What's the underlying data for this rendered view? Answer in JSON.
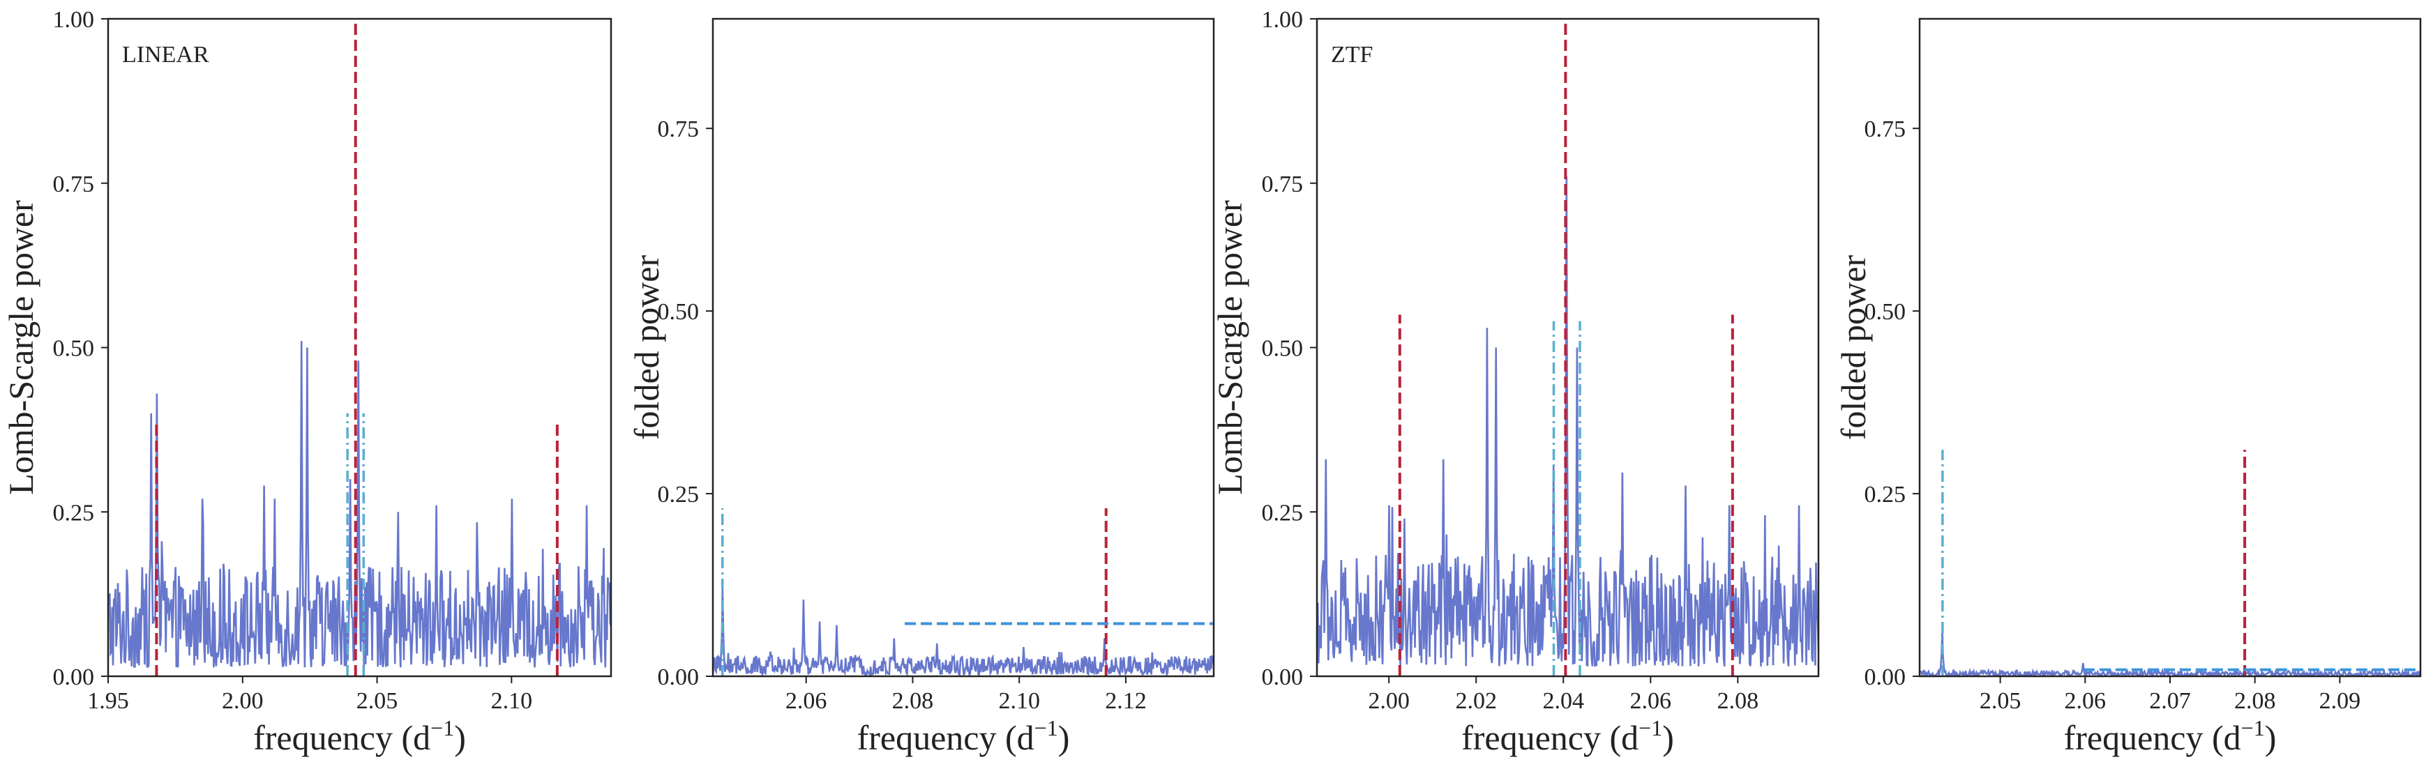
{
  "figure": {
    "colors": {
      "trace": "#6677cc",
      "red_marker": "#b8233b",
      "cyan_marker": "#5aaed0",
      "threshold": "#3f92dc",
      "frame": "#222222"
    }
  },
  "chart_data": [
    {
      "type": "line",
      "panel_label": "LINEAR",
      "xlabel": "frequency (d",
      "xlabel_exponent": "−1",
      "xlabel_tail": ")",
      "ylabel": "Lomb-Scargle power",
      "xlim": [
        1.95,
        2.137
      ],
      "ylim": [
        0.0,
        1.0
      ],
      "xticks": [
        1.95,
        2.0,
        2.05,
        2.1
      ],
      "xtick_labels": [
        "1.95",
        "2.00",
        "2.05",
        "2.10"
      ],
      "yticks": [
        0.0,
        0.25,
        0.5,
        0.75,
        1.0
      ],
      "ytick_labels": [
        "0.00",
        "0.25",
        "0.50",
        "0.75",
        "1.00"
      ],
      "series_baseline": 0.09,
      "series_peaks": [
        {
          "x": 1.968,
          "y": 0.43
        },
        {
          "x": 1.966,
          "y": 0.4
        },
        {
          "x": 1.985,
          "y": 0.27
        },
        {
          "x": 2.008,
          "y": 0.29
        },
        {
          "x": 2.012,
          "y": 0.27
        },
        {
          "x": 2.022,
          "y": 0.51
        },
        {
          "x": 2.024,
          "y": 0.5
        },
        {
          "x": 2.04,
          "y": 0.3
        },
        {
          "x": 2.043,
          "y": 0.48
        },
        {
          "x": 2.058,
          "y": 0.25
        },
        {
          "x": 2.072,
          "y": 0.26
        },
        {
          "x": 2.1,
          "y": 0.27
        },
        {
          "x": 2.128,
          "y": 0.26
        }
      ],
      "red_markers": [
        {
          "x": 1.968,
          "height": 0.39
        },
        {
          "x": 2.042,
          "height": 1.0
        },
        {
          "x": 2.117,
          "height": 0.39
        }
      ],
      "cyan_markers": [
        {
          "x": 2.039,
          "height": 0.4
        },
        {
          "x": 2.045,
          "height": 0.4
        }
      ]
    },
    {
      "type": "line",
      "panel_label": "",
      "xlabel": "frequency (d",
      "xlabel_exponent": "−1",
      "xlabel_tail": ")",
      "ylabel": "folded power",
      "xlim": [
        2.0425,
        2.1365
      ],
      "ylim": [
        0.0,
        0.9
      ],
      "xticks": [
        2.06,
        2.08,
        2.1,
        2.12
      ],
      "xtick_labels": [
        "2.06",
        "2.08",
        "2.10",
        "2.12"
      ],
      "yticks": [
        0.0,
        0.25,
        0.5,
        0.75
      ],
      "ytick_labels": [
        "0.00",
        "0.25",
        "0.50",
        "0.75"
      ],
      "series_baseline": 0.015,
      "series_peaks": [
        {
          "x": 2.0443,
          "y": 0.12
        },
        {
          "x": 2.0595,
          "y": 0.105
        },
        {
          "x": 2.0625,
          "y": 0.075
        },
        {
          "x": 2.0658,
          "y": 0.07
        },
        {
          "x": 2.0765,
          "y": 0.052
        },
        {
          "x": 2.0845,
          "y": 0.045
        },
        {
          "x": 2.1008,
          "y": 0.04
        },
        {
          "x": 2.116,
          "y": 0.052
        }
      ],
      "red_markers": [
        {
          "x": 2.1163,
          "height": 0.23
        }
      ],
      "cyan_markers": [
        {
          "x": 2.0443,
          "height": 0.23
        }
      ],
      "threshold": {
        "y": 0.072,
        "x_start": 2.0785,
        "x_end": 2.1365
      }
    },
    {
      "type": "line",
      "panel_label": "ZTF",
      "xlabel": "frequency (d",
      "xlabel_exponent": "−1",
      "xlabel_tail": ")",
      "ylabel": "Lomb-Scargle power",
      "xlim": [
        1.9835,
        2.0985
      ],
      "ylim": [
        0.0,
        1.0
      ],
      "xticks": [
        2.0,
        2.02,
        2.04,
        2.06,
        2.08
      ],
      "xtick_labels": [
        "2.00",
        "2.02",
        "2.04",
        "2.06",
        "2.08"
      ],
      "yticks": [
        0.0,
        0.25,
        0.5,
        0.75,
        1.0
      ],
      "ytick_labels": [
        "0.00",
        "0.25",
        "0.50",
        "0.75",
        "1.00"
      ],
      "series_baseline": 0.1,
      "series_peaks": [
        {
          "x": 1.9855,
          "y": 0.33
        },
        {
          "x": 2.0,
          "y": 0.26
        },
        {
          "x": 2.0035,
          "y": 0.24
        },
        {
          "x": 2.0125,
          "y": 0.33
        },
        {
          "x": 2.0225,
          "y": 0.53
        },
        {
          "x": 2.0245,
          "y": 0.5
        },
        {
          "x": 2.0378,
          "y": 0.32
        },
        {
          "x": 2.0408,
          "y": 0.76
        },
        {
          "x": 2.0432,
          "y": 0.5
        },
        {
          "x": 2.0535,
          "y": 0.31
        },
        {
          "x": 2.068,
          "y": 0.29
        },
        {
          "x": 2.078,
          "y": 0.26
        },
        {
          "x": 2.094,
          "y": 0.26
        }
      ],
      "red_markers": [
        {
          "x": 2.0025,
          "height": 0.55
        },
        {
          "x": 2.0405,
          "height": 1.0
        },
        {
          "x": 2.0788,
          "height": 0.55
        }
      ],
      "cyan_markers": [
        {
          "x": 2.0378,
          "height": 0.54
        },
        {
          "x": 2.0438,
          "height": 0.54
        }
      ]
    },
    {
      "type": "line",
      "panel_label": "",
      "xlabel": "frequency (d",
      "xlabel_exponent": "−1",
      "xlabel_tail": ")",
      "ylabel": "folded power",
      "xlim": [
        2.0405,
        2.0995
      ],
      "ylim": [
        0.0,
        0.9
      ],
      "xticks": [
        2.05,
        2.06,
        2.07,
        2.08,
        2.09
      ],
      "xtick_labels": [
        "2.05",
        "2.06",
        "2.07",
        "2.08",
        "2.09"
      ],
      "yticks": [
        0.0,
        0.25,
        0.5,
        0.75
      ],
      "ytick_labels": [
        "0.00",
        "0.25",
        "0.50",
        "0.75"
      ],
      "series_baseline": 0.004,
      "series_peaks": [
        {
          "x": 2.0432,
          "y": 0.06
        },
        {
          "x": 2.0598,
          "y": 0.018
        },
        {
          "x": 2.0675,
          "y": 0.009
        }
      ],
      "red_markers": [
        {
          "x": 2.0788,
          "height": 0.31
        }
      ],
      "cyan_markers": [
        {
          "x": 2.0432,
          "height": 0.31
        }
      ],
      "threshold": {
        "y": 0.009,
        "x_start": 2.0598,
        "x_end": 2.0995
      }
    }
  ]
}
